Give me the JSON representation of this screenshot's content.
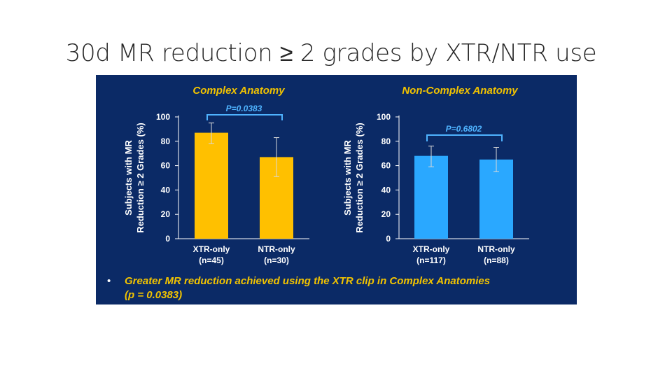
{
  "slide": {
    "title": "30d MR reduction ≥ 2 grades by XTR/NTR use"
  },
  "bullet": {
    "marker": "•",
    "line1": "Greater MR reduction achieved using the XTR clip in Complex Anatomies",
    "line2": "(p = 0.0383)"
  },
  "colors": {
    "panel_bg": "#0b2a66",
    "complex_bar": "#ffc000",
    "noncomplex_bar": "#2aa8ff",
    "bracket": "#4fb3ff",
    "title_gold": "#f2c300"
  },
  "chart_data": [
    {
      "type": "bar",
      "title": "Complex Anatomy",
      "ylabel": "Subjects with MR Reduction ≥ 2 Grades (%)",
      "ylabel_lines": [
        "Subjects with MR",
        "Reduction ≥ 2 Grades (%)"
      ],
      "ylim": [
        0,
        100
      ],
      "yticks": [
        0,
        20,
        40,
        60,
        80,
        100
      ],
      "categories": [
        "XTR-only",
        "NTR-only"
      ],
      "category_n": [
        "(n=45)",
        "(n=30)"
      ],
      "values": [
        87,
        67
      ],
      "error_low": [
        78,
        51
      ],
      "error_high": [
        95,
        83
      ],
      "p_value_label": "P=0.0383",
      "grid": false
    },
    {
      "type": "bar",
      "title": "Non-Complex Anatomy",
      "ylabel": "Subjects with MR Reduction ≥ 2 Grades (%)",
      "ylabel_lines": [
        "Subjects with MR",
        "Reduction ≥ 2 Grades (%)"
      ],
      "ylim": [
        0,
        100
      ],
      "yticks": [
        0,
        20,
        40,
        60,
        80,
        100
      ],
      "categories": [
        "XTR-only",
        "NTR-only"
      ],
      "category_n": [
        "(n=117)",
        "(n=88)"
      ],
      "values": [
        68,
        65
      ],
      "error_low": [
        59,
        55
      ],
      "error_high": [
        76,
        75
      ],
      "p_value_label": "P=0.6802",
      "grid": false
    }
  ]
}
